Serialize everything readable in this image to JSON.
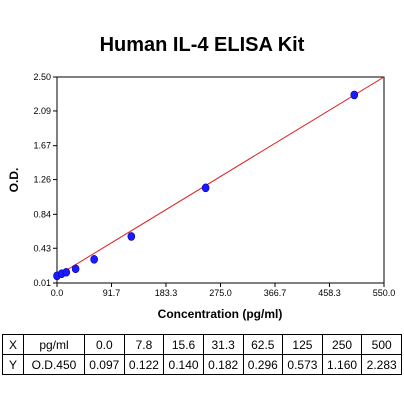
{
  "chart_data": {
    "type": "scatter",
    "title": "Human IL-4 ELISA Kit",
    "xlabel": "Concentration (pg/ml)",
    "ylabel": "O.D.",
    "xlim": [
      0.0,
      550.0
    ],
    "ylim": [
      0.01,
      2.5
    ],
    "xticks": [
      "0.0",
      "91.7",
      "183.3",
      "275.0",
      "366.7",
      "458.3",
      "550.0"
    ],
    "yticks": [
      "0.01",
      "0.43",
      "0.84",
      "1.26",
      "1.67",
      "2.09",
      "2.50"
    ],
    "series": [
      {
        "x": [
          0.0,
          7.8,
          15.6,
          31.3,
          62.5,
          125,
          250,
          500
        ],
        "y": [
          0.097,
          0.122,
          0.14,
          0.182,
          0.296,
          0.573,
          1.16,
          2.283
        ]
      }
    ],
    "fit_line": {
      "x": [
        0.0,
        550.0
      ],
      "y": [
        0.095,
        2.5
      ]
    },
    "colors": {
      "points": "#1a1aff",
      "fit_line": "#e02020",
      "axes": "#000000",
      "grid": "none"
    },
    "grid": false,
    "legend": "none"
  },
  "table": {
    "rows": [
      [
        "X",
        "pg/ml",
        "0.0",
        "7.8",
        "15.6",
        "31.3",
        "62.5",
        "125",
        "250",
        "500"
      ],
      [
        "Y",
        "O.D.450",
        "0.097",
        "0.122",
        "0.140",
        "0.182",
        "0.296",
        "0.573",
        "1.160",
        "2.283"
      ]
    ]
  }
}
